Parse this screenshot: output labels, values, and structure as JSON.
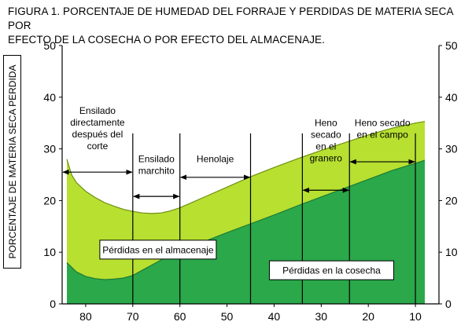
{
  "title_lines": [
    "FIGURA 1. PORCENTAJE DE HUMEDAD DEL FORRAJE Y PERDIDAS DE MATERIA SECA POR",
    "EFECTO DE LA COSECHA O POR EFECTO DEL ALMACENAJE."
  ],
  "colors": {
    "cosecha": "#2aa84a",
    "almacenaje": "#b7e031",
    "axis": "#000000"
  },
  "chart_data": {
    "type": "area",
    "title": "FIGURA 1. PORCENTAJE DE HUMEDAD DEL FORRAJE Y PERDIDAS DE MATERIA SECA POR EFECTO DE LA COSECHA O POR EFECTO DEL ALMACENAJE.",
    "xlabel": "",
    "ylabel": "PORCENTAJE DE MATERIA SECA PERDIDA",
    "xlim": [
      85,
      5
    ],
    "ylim": [
      0,
      50
    ],
    "x_ticks": [
      80,
      70,
      60,
      50,
      40,
      30,
      20,
      10
    ],
    "y_ticks": [
      0,
      10,
      20,
      30,
      40,
      50
    ],
    "grid": false,
    "series": [
      {
        "name": "Pérdidas en la cosecha",
        "x": [
          84,
          82,
          80,
          78,
          76,
          74,
          72,
          70,
          68,
          66,
          64,
          62,
          60,
          55,
          50,
          45,
          40,
          35,
          30,
          25,
          20,
          15,
          10,
          8
        ],
        "y": [
          8,
          6.2,
          5.3,
          4.9,
          4.7,
          4.8,
          5.0,
          5.5,
          6.5,
          7.5,
          8.5,
          9.5,
          10.2,
          12.0,
          13.8,
          15.5,
          17.2,
          19.0,
          20.7,
          22.4,
          24.1,
          25.8,
          27.2,
          27.8
        ]
      },
      {
        "name": "Pérdidas en el almacenaje",
        "x": [
          84,
          83,
          82,
          80,
          78,
          76,
          74,
          72,
          70,
          68,
          66,
          64,
          62,
          60,
          55,
          50,
          45,
          40,
          35,
          30,
          25,
          20,
          15,
          10,
          8
        ],
        "y": [
          28,
          25,
          23.5,
          21.8,
          20.6,
          19.6,
          18.9,
          18.3,
          17.9,
          17.6,
          17.5,
          17.6,
          18.0,
          18.6,
          20.6,
          22.6,
          24.6,
          26.4,
          28.1,
          29.7,
          31.2,
          32.7,
          34.0,
          35.0,
          35.3
        ]
      }
    ],
    "region_lines_x": [
      70,
      60,
      45,
      34,
      24,
      10
    ],
    "regions": [
      {
        "label": "Ensilado directamente después del corte",
        "from": 85,
        "to": 70,
        "arrow_y": 25.5
      },
      {
        "label": "Ensilado marchito",
        "from": 70,
        "to": 60,
        "arrow_y": 20.8
      },
      {
        "label": "Henolaje",
        "from": 60,
        "to": 45,
        "arrow_y": 24.5
      },
      {
        "label": "Heno secado en el granero",
        "from": 34,
        "to": 24,
        "arrow_y": 22.0
      },
      {
        "label": "Heno secado en el campo",
        "from": 24,
        "to": 10,
        "arrow_y": 27.5
      }
    ],
    "annotations": [
      {
        "text": "Pérdidas en el almacenaje",
        "x": 77,
        "y": 10.5
      },
      {
        "text": "Pérdidas en la cosecha",
        "x": 41,
        "y": 6.5
      }
    ],
    "region_labels": [
      [
        "Ensilado",
        "directamente",
        "después del",
        "corte"
      ],
      [
        "Ensilado",
        "marchito"
      ],
      [
        "Henolaje"
      ],
      [
        "Heno",
        "secado",
        "en el",
        "granero"
      ],
      [
        "Heno secado",
        "en el campo"
      ]
    ]
  }
}
